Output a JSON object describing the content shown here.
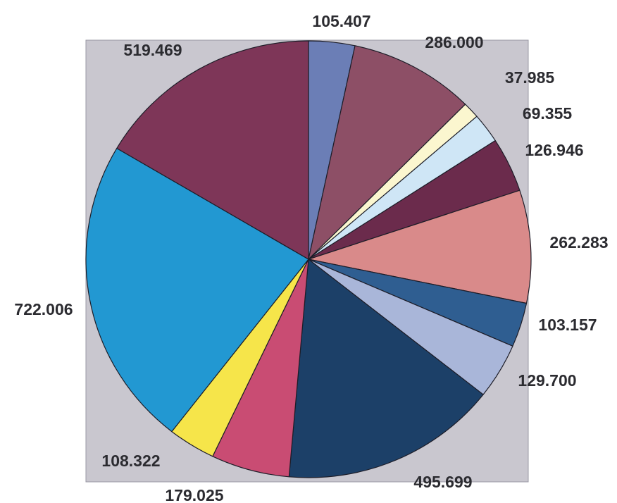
{
  "chart_data": {
    "type": "pie",
    "title": "",
    "start_angle_deg": 90,
    "direction": "clockwise",
    "legend": "none",
    "plot_background": "#c9c7cf",
    "slices": [
      {
        "value": 105.407,
        "label": "105.407",
        "color": "#6b7eb6"
      },
      {
        "value": 286.0,
        "label": "286.000",
        "color": "#8d4f66"
      },
      {
        "value": 37.985,
        "label": "37.985",
        "color": "#fbf6cf"
      },
      {
        "value": 69.355,
        "label": "69.355",
        "color": "#cfe6f6"
      },
      {
        "value": 126.946,
        "label": "126.946",
        "color": "#6b2b4c"
      },
      {
        "value": 262.283,
        "label": "262.283",
        "color": "#d98a8a"
      },
      {
        "value": 103.157,
        "label": "103.157",
        "color": "#2f5e91"
      },
      {
        "value": 129.7,
        "label": "129.700",
        "color": "#a9b6d9"
      },
      {
        "value": 495.699,
        "label": "495.699",
        "color": "#1c4068"
      },
      {
        "value": 179.025,
        "label": "179.025",
        "color": "#c94c73"
      },
      {
        "value": 108.322,
        "label": "108.322",
        "color": "#f6e54a"
      },
      {
        "value": 722.006,
        "label": "722.006",
        "color": "#2298d2"
      },
      {
        "value": 519.469,
        "label": "519.469",
        "color": "#7e3658"
      }
    ]
  }
}
